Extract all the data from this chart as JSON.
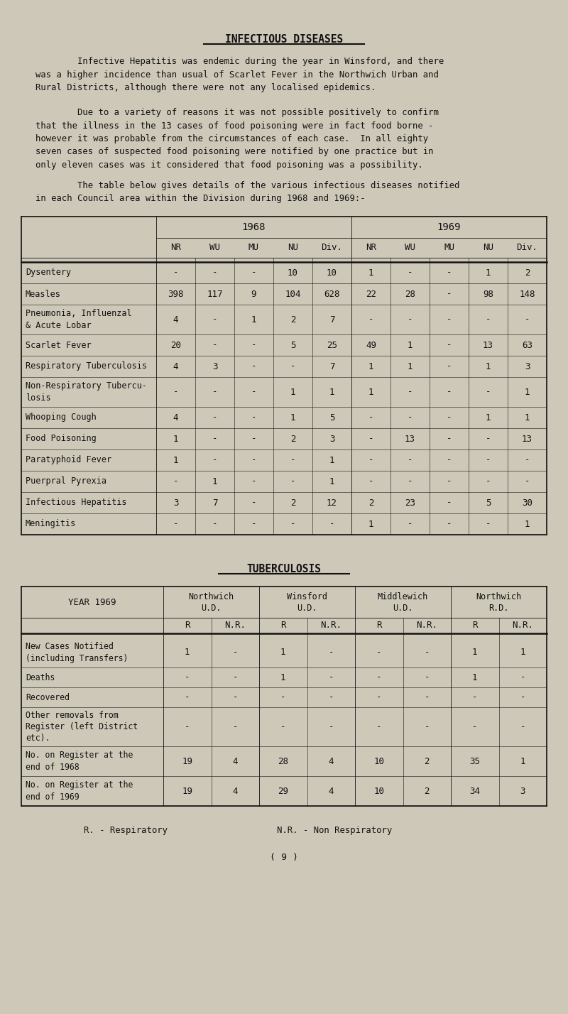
{
  "bg_color": "#cec8b8",
  "title1": "INFECTIOUS DISEASES",
  "para1_indent": "        Infective Hepatitis was endemic during the year in Winsford, and there\nwas a higher incidence than usual of Scarlet Fever in the Northwich Urban and\nRural Districts, although there were not any localised epidemics.",
  "para2_indent": "        Due to a variety of reasons it was not possible positively to confirm\nthat the illness in the 13 cases of food poisoning were in fact food borne -\nhowever it was probable from the circumstances of each case.  In all eighty\nseven cases of suspected food poisoning were notified by one practice but in\nonly eleven cases was it considered that food poisoning was a possibility.",
  "para3_indent": "        The table below gives details of the various infectious diseases notified\nin each Council area within the Division during 1968 and 1969:-",
  "table1_subheaders": [
    "NR",
    "WU",
    "MU",
    "NU",
    "Div.",
    "NR",
    "WU",
    "MU",
    "NU",
    "Div."
  ],
  "table1_rows": [
    [
      "Dysentery",
      "-",
      "-",
      "-",
      "10",
      "10",
      "1",
      "-",
      "-",
      "1",
      "2"
    ],
    [
      "Measles",
      "398",
      "117",
      "9",
      "104",
      "628",
      "22",
      "28",
      "-",
      "98",
      "148"
    ],
    [
      "Pneumonia, Influenzal\n& Acute Lobar",
      "4",
      "-",
      "1",
      "2",
      "7",
      "-",
      "-",
      "-",
      "-",
      "-"
    ],
    [
      "Scarlet Fever",
      "20",
      "-",
      "-",
      "5",
      "25",
      "49",
      "1",
      "-",
      "13",
      "63"
    ],
    [
      "Respiratory Tuberculosis",
      "4",
      "3",
      "-",
      "-",
      "7",
      "1",
      "1",
      "-",
      "1",
      "3"
    ],
    [
      "Non-Respiratory Tubercu-\nlosis",
      "-",
      "-",
      "-",
      "1",
      "1",
      "1",
      "-",
      "-",
      "-",
      "1"
    ],
    [
      "Whooping Cough",
      "4",
      "-",
      "-",
      "1",
      "5",
      "-",
      "-",
      "-",
      "1",
      "1"
    ],
    [
      "Food Poisoning",
      "1",
      "-",
      "-",
      "2",
      "3",
      "-",
      "13",
      "-",
      "-",
      "13"
    ],
    [
      "Paratyphoid Fever",
      "1",
      "-",
      "-",
      "-",
      "1",
      "-",
      "-",
      "-",
      "-",
      "-"
    ],
    [
      "Puerpral Pyrexia",
      "-",
      "1",
      "-",
      "-",
      "1",
      "-",
      "-",
      "-",
      "-",
      "-"
    ],
    [
      "Infectious Hepatitis",
      "3",
      "7",
      "-",
      "2",
      "12",
      "2",
      "23",
      "-",
      "5",
      "30"
    ],
    [
      "Meningitis",
      "-",
      "-",
      "-",
      "-",
      "-",
      "1",
      "-",
      "-",
      "-",
      "1"
    ]
  ],
  "title2": "TUBERCULOSIS",
  "table2_year": "YEAR 1969",
  "table2_col_headers": [
    "Northwich\nU.D.",
    "Winsford\nU.D.",
    "Middlewich\nU.D.",
    "Northwich\nR.D."
  ],
  "table2_subcol_headers": [
    "R",
    "N.R.",
    "R",
    "N.R.",
    "R",
    "N.R.",
    "R",
    "N.R."
  ],
  "table2_rows": [
    [
      "New Cases Notified\n(including Transfers)",
      "1",
      "-",
      "1",
      "-",
      "-",
      "-",
      "1",
      "1"
    ],
    [
      "Deaths",
      "-",
      "-",
      "1",
      "-",
      "-",
      "-",
      "1",
      "-"
    ],
    [
      "Recovered",
      "-",
      "-",
      "-",
      "-",
      "-",
      "-",
      "-",
      "-"
    ],
    [
      "Other removals from\nRegister (left District\netc).",
      "-",
      "-",
      "-",
      "-",
      "-",
      "-",
      "-",
      "-"
    ],
    [
      "No. on Register at the\nend of 1968",
      "19",
      "4",
      "28",
      "4",
      "10",
      "2",
      "35",
      "1"
    ],
    [
      "No. on Register at the\nend of 1969",
      "19",
      "4",
      "29",
      "4",
      "10",
      "2",
      "34",
      "3"
    ]
  ],
  "page_num": "( 9 )"
}
